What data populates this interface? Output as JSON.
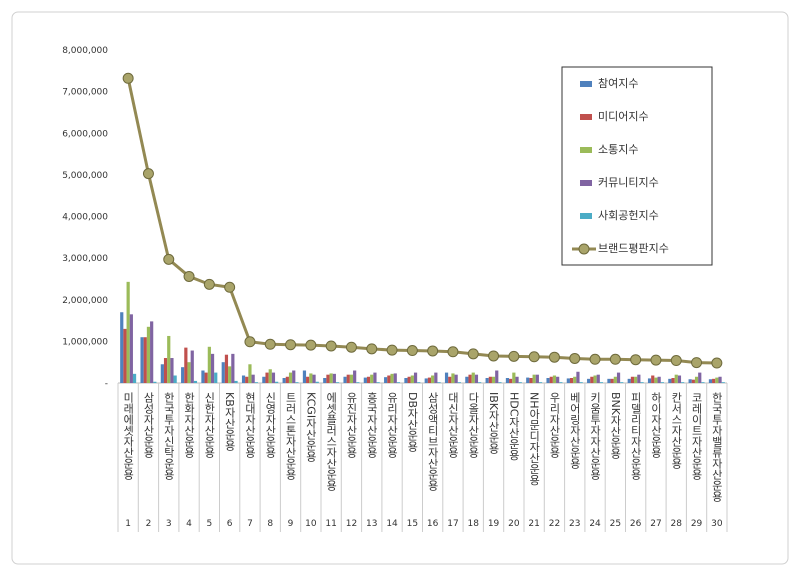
{
  "chart_data": {
    "type": "bar",
    "categories": [
      "미래에셋자산운용",
      "삼성자산운용",
      "한국투자신탁운용",
      "한화자산운용",
      "신한자산운용",
      "KB자산운용",
      "현대자산운용",
      "신영자산운용",
      "트러스톤자산운용",
      "KCGI자산운용",
      "에셋플러스자산운용",
      "유진자산운용",
      "흥국자산운용",
      "유리자산운용",
      "DB자산운용",
      "삼성액티브자산운용",
      "대신자산운용",
      "다올자산운용",
      "IBK자산운용",
      "HDC자산운용",
      "NH아문디자산운용",
      "우리자산운용",
      "베어링자산운용",
      "키움투자자산운용",
      "BNK자산운용",
      "피델리티자산운용",
      "하이자산운용",
      "칸서스자산운용",
      "코레이트자산운용",
      "한국투자밸류자산운용"
    ],
    "ranks": [
      1,
      2,
      3,
      4,
      5,
      6,
      7,
      8,
      9,
      10,
      11,
      12,
      13,
      14,
      15,
      16,
      17,
      18,
      19,
      20,
      21,
      22,
      23,
      24,
      25,
      26,
      27,
      28,
      29,
      30
    ],
    "series": [
      {
        "name": "참여지수",
        "color": "#4f81bd",
        "values": [
          1700000,
          1100000,
          450000,
          380000,
          300000,
          500000,
          180000,
          150000,
          120000,
          300000,
          120000,
          150000,
          130000,
          140000,
          120000,
          110000,
          250000,
          150000,
          120000,
          120000,
          130000,
          120000,
          110000,
          100000,
          100000,
          100000,
          110000,
          100000,
          90000,
          90000
        ]
      },
      {
        "name": "미디어지수",
        "color": "#c0504d",
        "values": [
          1300000,
          1100000,
          600000,
          850000,
          250000,
          680000,
          150000,
          250000,
          150000,
          150000,
          200000,
          200000,
          150000,
          180000,
          150000,
          130000,
          150000,
          200000,
          150000,
          100000,
          120000,
          150000,
          120000,
          150000,
          100000,
          150000,
          180000,
          120000,
          80000,
          100000
        ]
      },
      {
        "name": "소통지수",
        "color": "#9bbb59",
        "values": [
          2430000,
          1350000,
          1130000,
          500000,
          870000,
          400000,
          450000,
          330000,
          250000,
          230000,
          230000,
          200000,
          200000,
          220000,
          180000,
          180000,
          230000,
          250000,
          150000,
          250000,
          200000,
          180000,
          150000,
          180000,
          150000,
          150000,
          130000,
          200000,
          150000,
          130000
        ]
      },
      {
        "name": "커뮤니티지수",
        "color": "#8064a2",
        "values": [
          1650000,
          1480000,
          600000,
          780000,
          700000,
          700000,
          200000,
          250000,
          300000,
          200000,
          220000,
          300000,
          250000,
          230000,
          250000,
          250000,
          200000,
          200000,
          300000,
          150000,
          200000,
          150000,
          270000,
          200000,
          250000,
          200000,
          150000,
          180000,
          250000,
          150000
        ]
      },
      {
        "name": "사회공헌지수",
        "color": "#4bacc6",
        "values": [
          220000,
          30000,
          180000,
          50000,
          250000,
          50000,
          20000,
          30000,
          20000,
          30000,
          20000,
          20000,
          20000,
          20000,
          20000,
          20000,
          20000,
          20000,
          20000,
          20000,
          20000,
          20000,
          20000,
          20000,
          20000,
          20000,
          20000,
          20000,
          20000,
          20000
        ]
      },
      {
        "name": "브랜드평판지수",
        "color": "#938953",
        "type": "line",
        "values": [
          7320000,
          5030000,
          2970000,
          2560000,
          2370000,
          2300000,
          990000,
          930000,
          920000,
          910000,
          890000,
          860000,
          820000,
          790000,
          780000,
          770000,
          750000,
          700000,
          650000,
          640000,
          630000,
          620000,
          590000,
          570000,
          570000,
          560000,
          550000,
          540000,
          490000,
          480000
        ]
      }
    ],
    "ylim": [
      0,
      8000000
    ],
    "yticks": [
      {
        "value": 0,
        "label": "-"
      },
      {
        "value": 1000000,
        "label": "1,000,000"
      },
      {
        "value": 2000000,
        "label": "2,000,000"
      },
      {
        "value": 3000000,
        "label": "3,000,000"
      },
      {
        "value": 4000000,
        "label": "4,000,000"
      },
      {
        "value": 5000000,
        "label": "5,000,000"
      },
      {
        "value": 6000000,
        "label": "6,000,000"
      },
      {
        "value": 7000000,
        "label": "7,000,000"
      },
      {
        "value": 8000000,
        "label": "8,000,000"
      }
    ],
    "grid": false,
    "legend": "upper right"
  }
}
